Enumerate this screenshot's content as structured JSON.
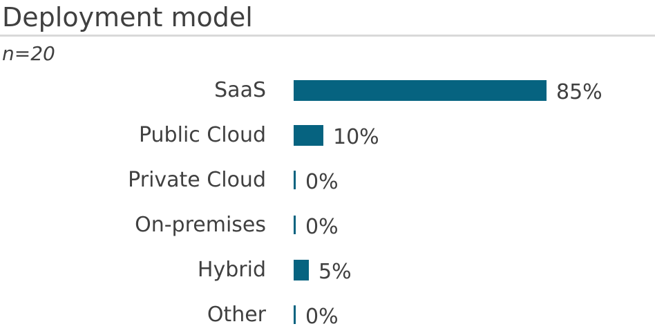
{
  "header": {
    "title": "Deployment model",
    "subtitle": "n=20"
  },
  "colors": {
    "bar": "#066380",
    "text": "#404040",
    "divider": "#d9d9d9",
    "background": "#ffffff"
  },
  "chart_data": {
    "type": "bar",
    "orientation": "horizontal",
    "title": "Deployment model",
    "subtitle": "n=20",
    "sample_size": 20,
    "unit": "%",
    "xlim": [
      0,
      100
    ],
    "grid": false,
    "legend": false,
    "value_labels_position": "right-of-bar",
    "categories": [
      "SaaS",
      "Public Cloud",
      "Private Cloud",
      "On-premises",
      "Hybrid",
      "Other"
    ],
    "values": [
      85,
      10,
      0,
      0,
      5,
      0
    ],
    "value_labels": [
      "85%",
      "10%",
      "0%",
      "0%",
      "5%",
      "0%"
    ]
  }
}
